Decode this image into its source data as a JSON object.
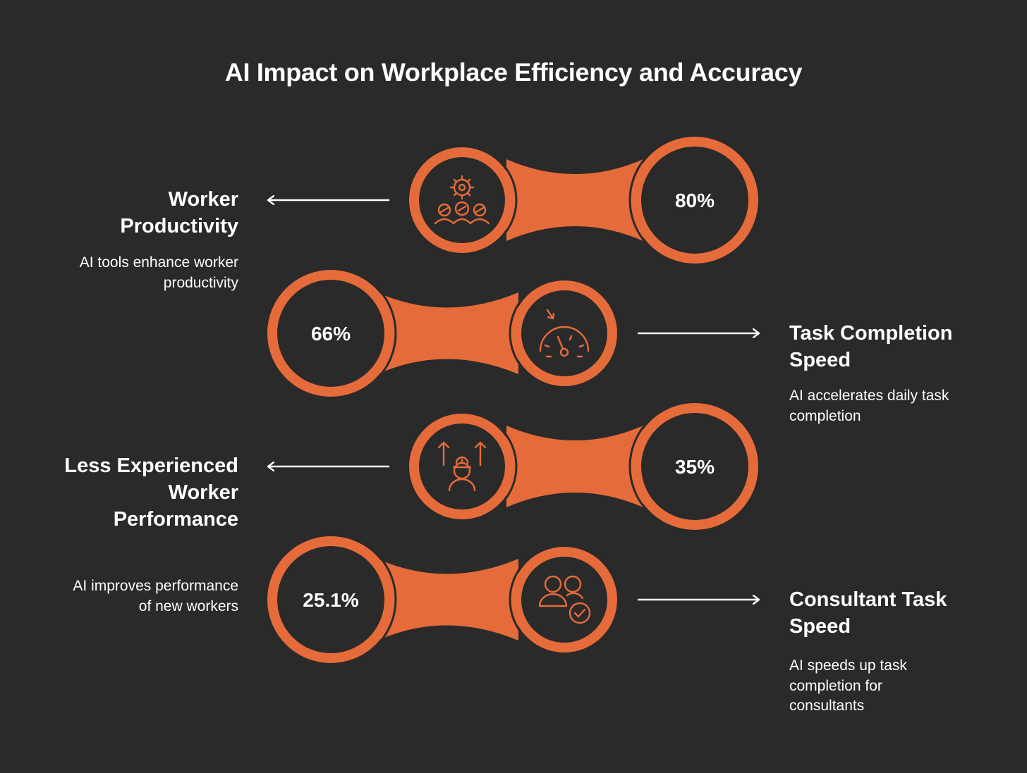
{
  "title": "AI Impact on Workplace Efficiency and Accuracy",
  "colors": {
    "background": "#2a2a2a",
    "accent": "#e66b3a",
    "text": "#ffffff"
  },
  "items": [
    {
      "value": "80%",
      "heading": "Worker Productivity",
      "description": "AI tools enhance worker productivity",
      "icon": "team-gear-icon"
    },
    {
      "value": "66%",
      "heading": "Task Completion Speed",
      "description": "AI accelerates daily task completion",
      "icon": "speedometer-icon"
    },
    {
      "value": "35%",
      "heading": "Less Experienced Worker Performance",
      "description": "AI improves performance of new workers",
      "icon": "worker-growth-icon"
    },
    {
      "value": "25.1%",
      "heading": "Consultant Task Speed",
      "description": "AI speeds up task completion for consultants",
      "icon": "consultant-check-icon"
    }
  ]
}
